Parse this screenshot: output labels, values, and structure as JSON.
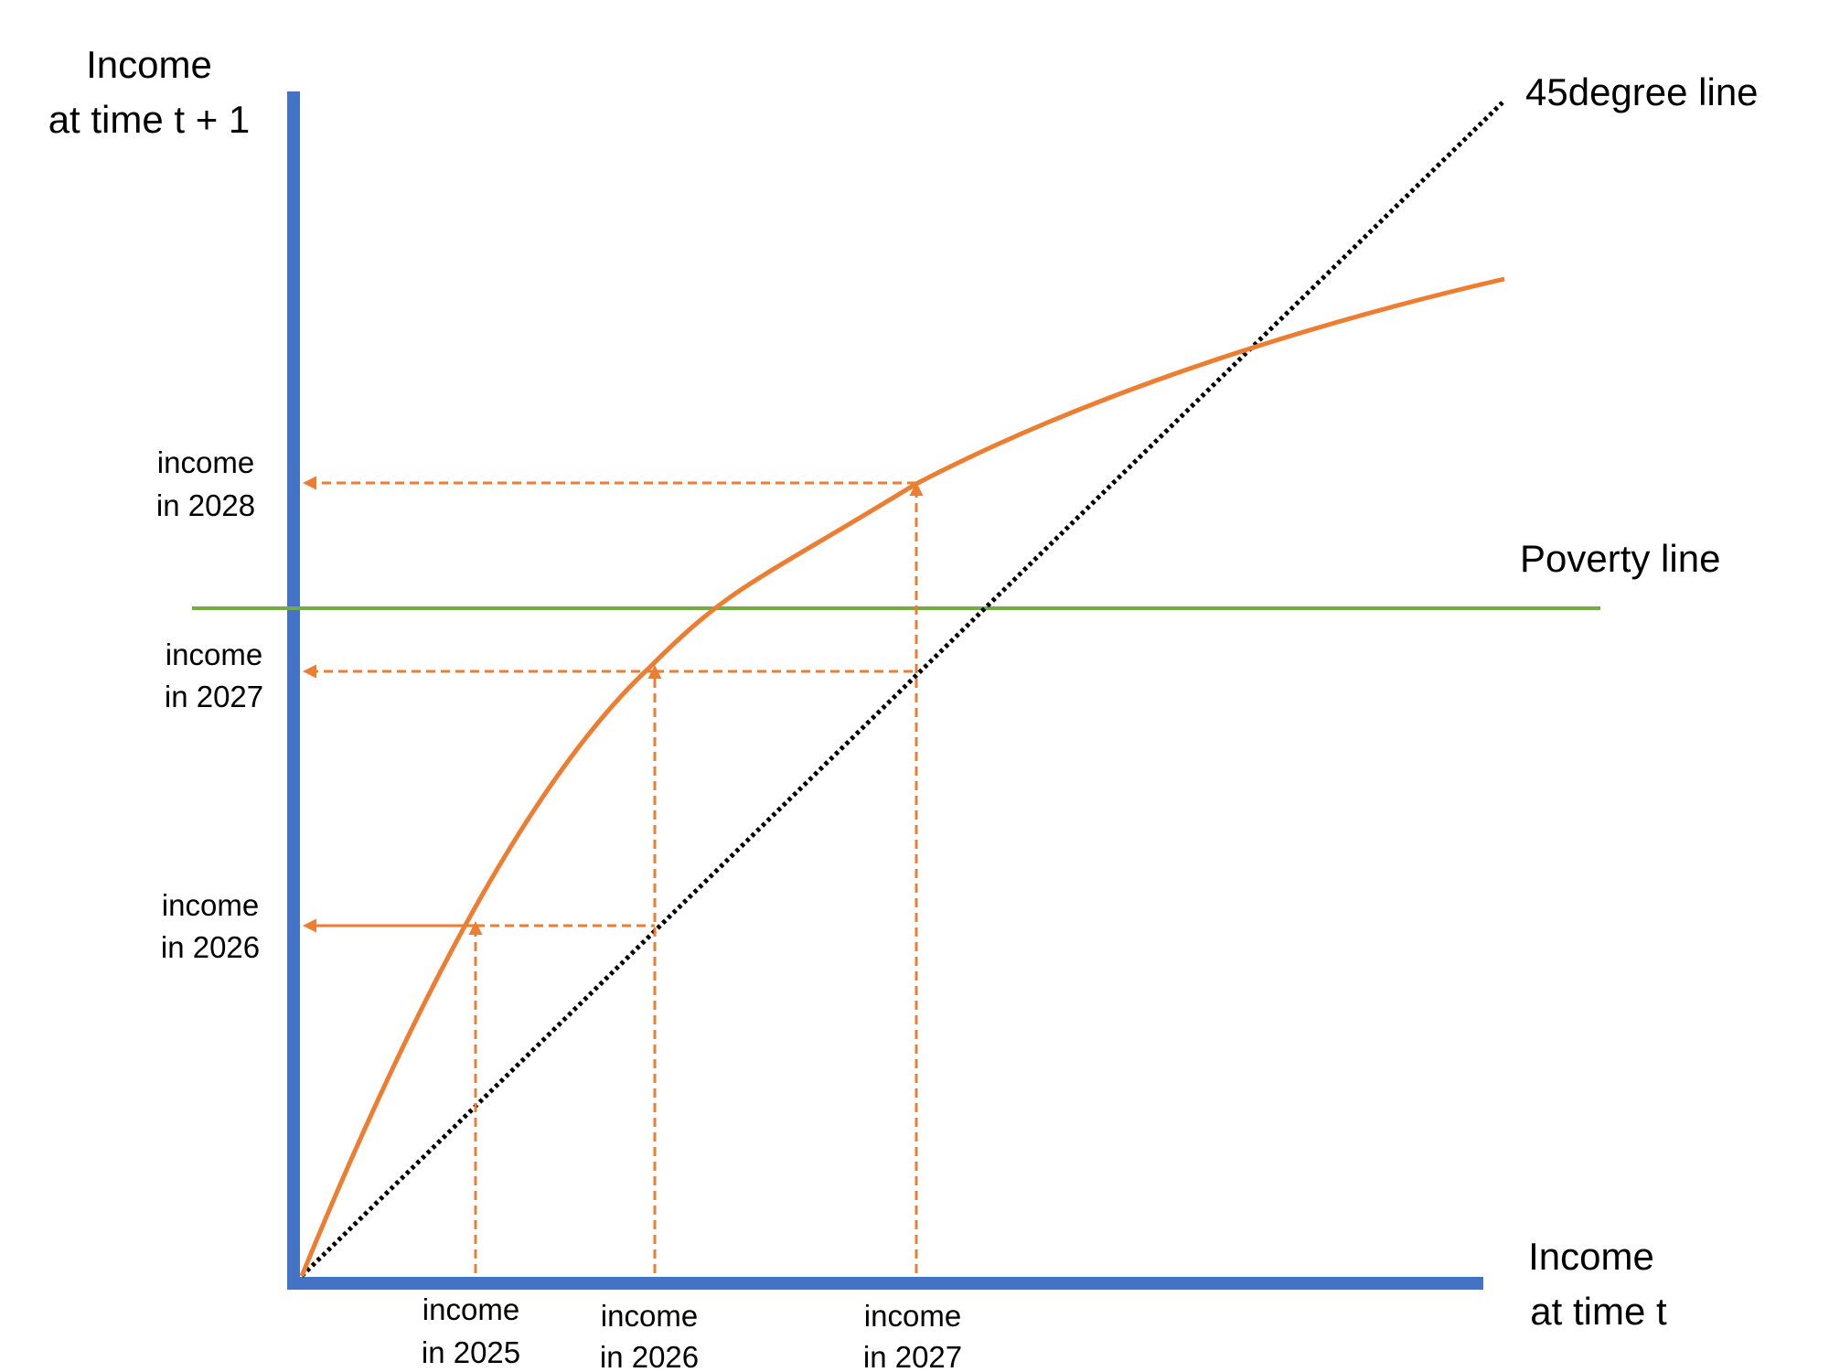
{
  "axes": {
    "y_label_line1": "Income",
    "y_label_line2": "at time t + 1",
    "x_label_line1": "Income",
    "x_label_line2": "at time t"
  },
  "lines": {
    "diagonal_label": "45degree line",
    "poverty_label": "Poverty line"
  },
  "x_ticks": [
    {
      "line1": "income",
      "line2": "in 2025"
    },
    {
      "line1": "income",
      "line2": "in 2026"
    },
    {
      "line1": "income",
      "line2": "in 2027"
    }
  ],
  "y_ticks": [
    {
      "line1": "income",
      "line2": "in 2026"
    },
    {
      "line1": "income",
      "line2": "in 2027"
    },
    {
      "line1": "income",
      "line2": "in 2028"
    }
  ],
  "colors": {
    "axis": "#4472C4",
    "curve": "#ED7D31",
    "poverty_line": "#70AD47",
    "diagonal": "#000000",
    "text": "#000000"
  }
}
